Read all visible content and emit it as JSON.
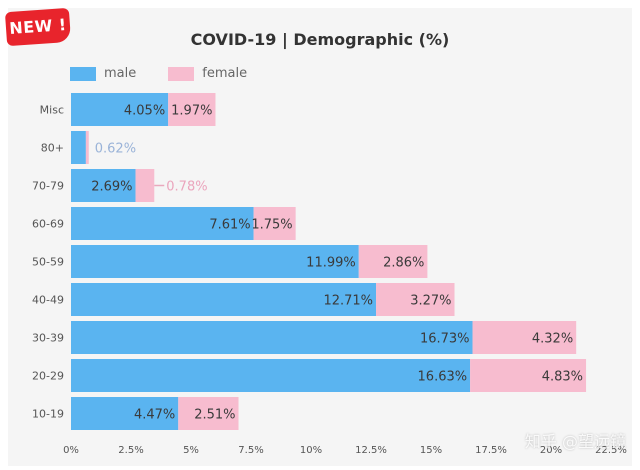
{
  "badge": "NEW !",
  "watermark": "知乎 @望远镜",
  "chart_data": {
    "type": "bar",
    "orientation": "horizontal",
    "stacked": true,
    "title": "COVID-19  |  Demographic (%)",
    "categories": [
      "Misc",
      "80+",
      "70-79",
      "60-69",
      "50-59",
      "40-49",
      "30-39",
      "20-29",
      "10-19"
    ],
    "series": [
      {
        "name": "male",
        "color": "#5ab4f0",
        "values": [
          4.05,
          0.62,
          2.69,
          7.61,
          11.99,
          12.71,
          16.73,
          16.63,
          4.47
        ],
        "labels": [
          "4.05%",
          "0.62%",
          "2.69%",
          "7.61%",
          "11.99%",
          "12.71%",
          "16.73%",
          "16.63%",
          "4.47%"
        ]
      },
      {
        "name": "female",
        "color": "#f7bccf",
        "values": [
          1.97,
          0.12,
          0.78,
          1.75,
          2.86,
          3.27,
          4.32,
          4.83,
          2.51
        ],
        "labels": [
          "1.97%",
          "",
          "0.78%",
          "1.75%",
          "2.86%",
          "3.27%",
          "4.32%",
          "4.83%",
          "2.51%"
        ]
      }
    ],
    "xlim": [
      0,
      22.5
    ],
    "xticks": [
      0,
      2.5,
      5,
      7.5,
      10,
      12.5,
      15,
      17.5,
      20,
      22.5
    ],
    "xtick_labels": [
      "0%",
      "2.5%",
      "5%",
      "7.5%",
      "10%",
      "12.5%",
      "15%",
      "17.5%",
      "20%",
      "22.5%"
    ],
    "legend": "top-left",
    "grid": false
  }
}
